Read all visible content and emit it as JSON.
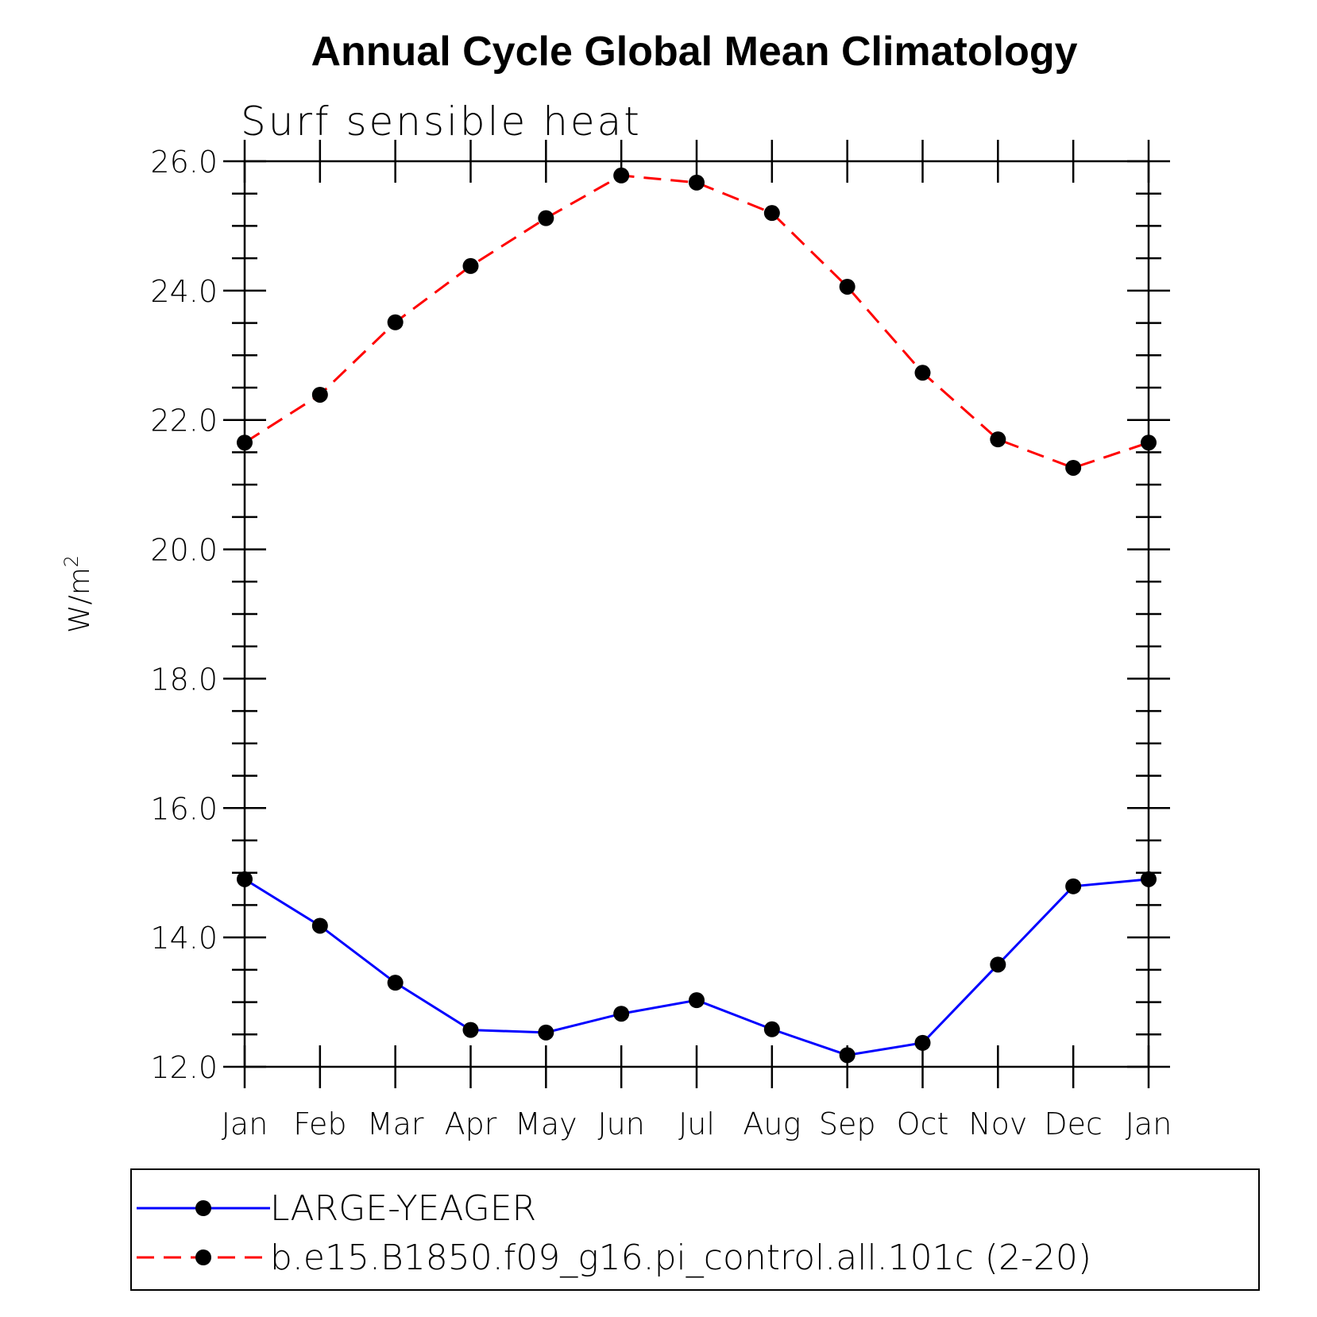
{
  "chart_data": {
    "type": "line",
    "title": "Annual Cycle Global Mean Climatology",
    "subtitle": "Surf sensible heat",
    "xlabel": "",
    "ylabel": "W/m",
    "ylabel_sup": "2",
    "categories": [
      "Jan",
      "Feb",
      "Mar",
      "Apr",
      "May",
      "Jun",
      "Jul",
      "Aug",
      "Sep",
      "Oct",
      "Nov",
      "Dec",
      "Jan"
    ],
    "ylim": [
      12.0,
      26.0
    ],
    "yticks": [
      "12.0",
      "14.0",
      "16.0",
      "18.0",
      "20.0",
      "22.0",
      "24.0",
      "26.0"
    ],
    "ytick_values": [
      12,
      14,
      16,
      18,
      20,
      22,
      24,
      26
    ],
    "series": [
      {
        "name": "LARGE-YEAGER",
        "color": "#0000ff",
        "dash": "solid",
        "values": [
          14.9,
          14.18,
          13.3,
          12.57,
          12.53,
          12.82,
          13.03,
          12.58,
          12.18,
          12.37,
          13.58,
          14.79,
          14.9
        ]
      },
      {
        "name": "b.e15.B1850.f09_g16.pi_control.all.101c (2-20)",
        "color": "#ff0000",
        "dash": "dashed",
        "values": [
          21.65,
          22.39,
          23.51,
          24.38,
          25.12,
          25.78,
          25.67,
          25.2,
          24.06,
          22.73,
          21.7,
          21.26,
          21.65
        ]
      }
    ],
    "marker": "filled-circle",
    "grid": false,
    "legend_position": "bottom"
  }
}
